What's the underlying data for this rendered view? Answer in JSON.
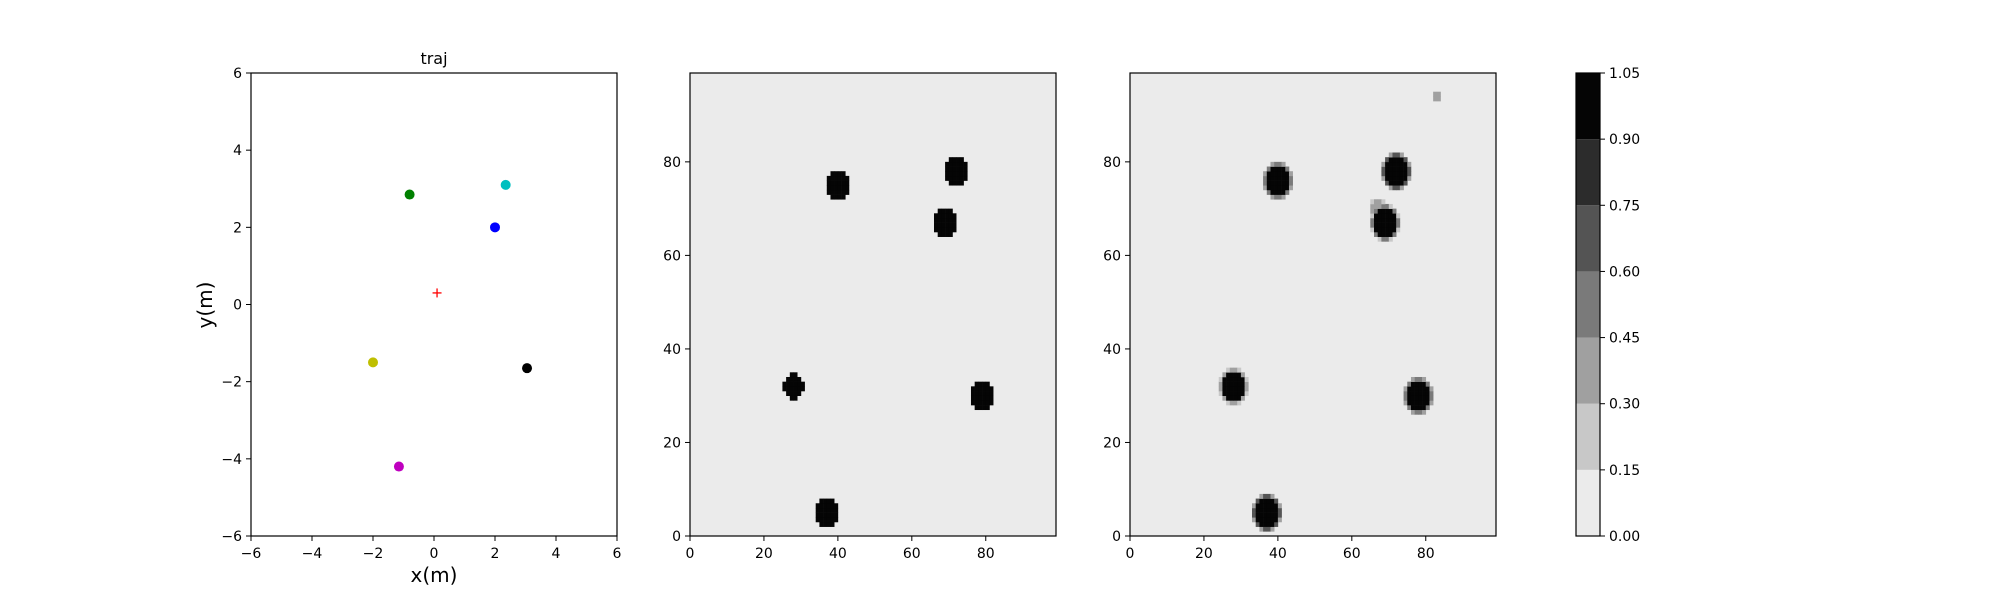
{
  "chart_data": [
    {
      "type": "scatter",
      "title": "traj",
      "xlabel": "x(m)",
      "ylabel": "y(m)",
      "xlim": [
        -6,
        6
      ],
      "ylim": [
        -6,
        6
      ],
      "xticks": [
        "−6",
        "−4",
        "−2",
        "0",
        "2",
        "4",
        "6"
      ],
      "yticks": [
        "−6",
        "−4",
        "−2",
        "0",
        "2",
        "4",
        "6"
      ],
      "grid": false,
      "points": [
        {
          "x": -0.8,
          "y": 2.85,
          "color": "#008000",
          "marker": "circle"
        },
        {
          "x": 2.35,
          "y": 3.1,
          "color": "#00bfbf",
          "marker": "circle"
        },
        {
          "x": 2.0,
          "y": 2.0,
          "color": "#0000ff",
          "marker": "circle"
        },
        {
          "x": 0.1,
          "y": 0.3,
          "color": "#ff0000",
          "marker": "plus"
        },
        {
          "x": -2.0,
          "y": -1.5,
          "color": "#bfbf00",
          "marker": "circle"
        },
        {
          "x": 3.05,
          "y": -1.65,
          "color": "#000000",
          "marker": "circle"
        },
        {
          "x": -1.15,
          "y": -4.2,
          "color": "#bf00bf",
          "marker": "circle"
        }
      ]
    },
    {
      "type": "heatmap",
      "title": "",
      "xlim": [
        0,
        99
      ],
      "ylim": [
        0,
        99
      ],
      "xticks": [
        "0",
        "20",
        "40",
        "60",
        "80"
      ],
      "yticks": [
        "0",
        "20",
        "40",
        "60",
        "80"
      ],
      "background_value": 0.05,
      "blobs": [
        {
          "x": 40,
          "y": 75,
          "value": 1.0,
          "r": 3.3
        },
        {
          "x": 72,
          "y": 78,
          "value": 1.0,
          "r": 3.3
        },
        {
          "x": 69,
          "y": 67,
          "value": 1.0,
          "r": 3.0
        },
        {
          "x": 28,
          "y": 32,
          "value": 1.0,
          "r": 2.8
        },
        {
          "x": 79,
          "y": 30,
          "value": 1.0,
          "r": 3.3
        },
        {
          "x": 37,
          "y": 5,
          "value": 1.0,
          "r": 3.4
        }
      ]
    },
    {
      "type": "heatmap",
      "title": "",
      "xlim": [
        0,
        99
      ],
      "ylim": [
        0,
        99
      ],
      "xticks": [
        "0",
        "20",
        "40",
        "60",
        "80"
      ],
      "yticks": [
        "0",
        "20",
        "40",
        "60",
        "80"
      ],
      "background_value": 0.05,
      "blobs": [
        {
          "x": 40,
          "y": 76,
          "value": 1.0,
          "r": 3.0
        },
        {
          "x": 72,
          "y": 78,
          "value": 1.0,
          "r": 3.1
        },
        {
          "x": 69,
          "y": 67,
          "value": 1.0,
          "r": 2.9
        },
        {
          "x": 67,
          "y": 70,
          "value": 0.35,
          "r": 1.5
        },
        {
          "x": 28,
          "y": 32,
          "value": 1.0,
          "r": 2.8
        },
        {
          "x": 78,
          "y": 30,
          "value": 1.0,
          "r": 3.0
        },
        {
          "x": 37,
          "y": 5,
          "value": 1.0,
          "r": 3.1
        },
        {
          "x": 83,
          "y": 94,
          "value": 0.35,
          "r": 0.7
        }
      ]
    },
    {
      "type": "colorbar",
      "levels": [
        0.0,
        0.15,
        0.3,
        0.45,
        0.6,
        0.75,
        0.9,
        1.05
      ],
      "labels": [
        "0.00",
        "0.15",
        "0.30",
        "0.45",
        "0.60",
        "0.75",
        "0.90",
        "1.05"
      ],
      "colors": [
        "#ebebeb",
        "#c8c8c8",
        "#a0a0a0",
        "#7a7a7a",
        "#545454",
        "#2c2c2c",
        "#050505"
      ]
    }
  ]
}
